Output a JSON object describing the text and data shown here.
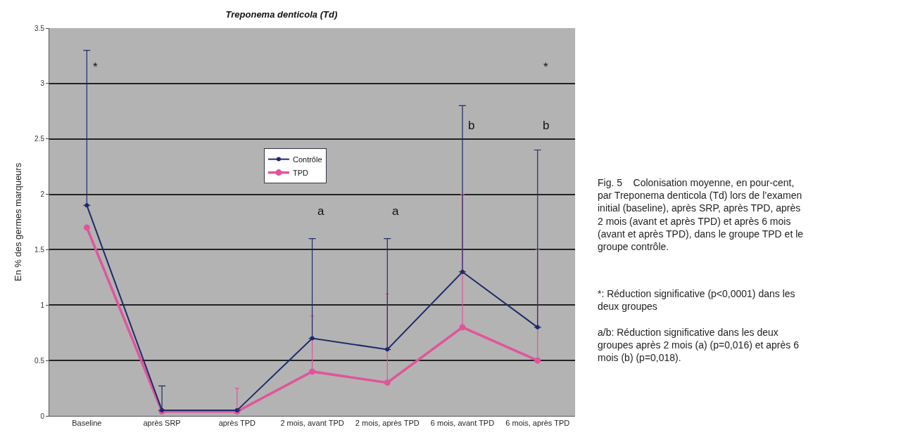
{
  "chart_data": {
    "type": "line",
    "title": "Treponema denticola (Td)",
    "ylabel": "En % des germes marqueurs",
    "categories": [
      "Baseline",
      "après SRP",
      "après TPD",
      "2 mois, avant TPD",
      "2 mois, après TPD",
      "6 mois, avant TPD",
      "6 mois, après TPD"
    ],
    "series": [
      {
        "name": "Contrôle",
        "color": "#1f2a6b",
        "values": [
          1.9,
          0.05,
          0.05,
          0.7,
          0.6,
          1.3,
          0.8
        ],
        "errors": [
          [
            1.9,
            3.3
          ],
          [
            0.05,
            0.27
          ],
          null,
          [
            0.7,
            1.6
          ],
          [
            0.6,
            1.6
          ],
          [
            1.3,
            2.8
          ],
          [
            0.8,
            2.4
          ]
        ]
      },
      {
        "name": "TPD",
        "color": "#e0559a",
        "values": [
          1.7,
          0.04,
          0.04,
          0.4,
          0.3,
          0.8,
          0.5
        ],
        "errors": [
          null,
          null,
          [
            0.04,
            0.25
          ],
          [
            0.4,
            0.9
          ],
          [
            0.3,
            1.1
          ],
          [
            0.8,
            2.0
          ],
          [
            0.5,
            1.5
          ]
        ]
      }
    ],
    "ylim": [
      0,
      3.5
    ],
    "yticks": [
      0,
      0.5,
      1,
      1.5,
      2,
      2.5,
      3,
      3.5
    ],
    "grid": "y",
    "legend": "top",
    "marker": "circle",
    "line_style": "solid",
    "annotations": [
      "*",
      "*",
      "a",
      "a",
      "b",
      "b",
      "Fig. 5    Colonisation moyenne, en pour-cent, par Treponema denticola (Td) lors de l’examen initial (baseline), après SRP, après TPD, après 2 mois (avant et après TPD) et après 6 mois (avant et après TPD), dans le groupe TPD et le groupe contrôle.",
      "*: Réduction significative (p<0,0001) dans les deux groupes",
      "a/b: Réduction significative dans les deux groupes après 2 mois (a) (p=0,016) et après 6 mois (b) (p=0,018)."
    ]
  }
}
